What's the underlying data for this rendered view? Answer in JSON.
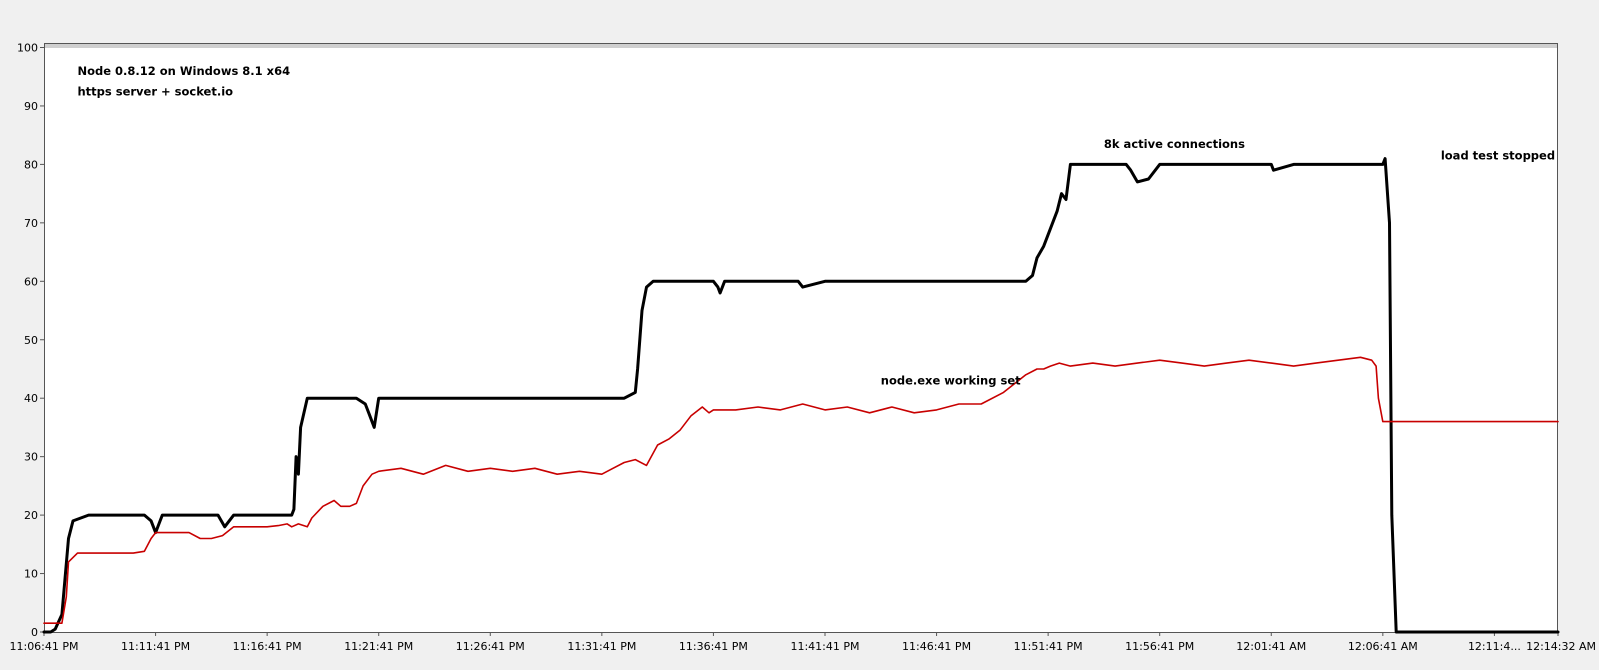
{
  "chart_data": {
    "type": "line",
    "annotations": [
      {
        "text": "Node 0.8.12 on Windows 8.1 x64",
        "x": 1.5,
        "y": 96
      },
      {
        "text": "https server + socket.io",
        "x": 1.5,
        "y": 92.5
      },
      {
        "text": "8k active connections",
        "x": 47.5,
        "y": 83.5
      },
      {
        "text": "node.exe working set",
        "x": 37.5,
        "y": 43
      },
      {
        "text": "load test stopped",
        "x": 62.6,
        "y": 81.5
      }
    ],
    "x_tick_labels": [
      "11:06:41 PM",
      "11:11:41 PM",
      "11:16:41 PM",
      "11:21:41 PM",
      "11:26:41 PM",
      "11:31:41 PM",
      "11:36:41 PM",
      "11:41:41 PM",
      "11:46:41 PM",
      "11:51:41 PM",
      "11:56:41 PM",
      "12:01:41 AM",
      "12:06:41 AM",
      "12:11:4...",
      "12:14:32 AM"
    ],
    "x_tick_positions": [
      0,
      5,
      10,
      15,
      20,
      25,
      30,
      35,
      40,
      45,
      50,
      55,
      60,
      65,
      67.85
    ],
    "xlim": [
      0,
      67.85
    ],
    "ylim": [
      0,
      100
    ],
    "y_ticks": [
      0,
      10,
      20,
      30,
      40,
      50,
      60,
      70,
      80,
      90,
      100
    ],
    "grid": false,
    "legend": "none",
    "series": [
      {
        "color": "#000000",
        "stroke": "thick",
        "x": [
          0,
          0.3,
          0.5,
          0.8,
          1.1,
          1.3,
          2,
          3,
          4,
          4.5,
          4.8,
          5,
          5.3,
          6,
          7,
          7.5,
          7.8,
          8.1,
          8.5,
          9,
          10,
          10.5,
          10.9,
          11.1,
          11.2,
          11.3,
          11.4,
          11.5,
          11.8,
          12,
          13,
          14,
          14.4,
          14.6,
          14.8,
          15,
          15.3,
          16,
          18,
          20,
          21,
          22,
          23,
          24,
          25,
          26,
          26.5,
          26.6,
          26.8,
          27,
          27.3,
          28,
          29,
          30,
          30.2,
          30.3,
          30.5,
          30.8,
          31,
          32,
          33,
          33.5,
          33.8,
          34,
          35,
          36,
          36.5,
          37,
          38,
          40,
          42,
          43,
          44,
          44.3,
          44.5,
          44.8,
          45.1,
          45.4,
          45.6,
          45.8,
          46,
          47,
          48,
          48.5,
          48.7,
          49,
          49.5,
          50,
          52,
          54,
          55,
          55.1,
          56,
          58,
          59,
          59.5,
          60,
          60.1,
          60.3,
          60.4,
          60.6,
          67.85
        ],
        "y": [
          0,
          0,
          0.5,
          3,
          16,
          19,
          20,
          20,
          20,
          20,
          19,
          17,
          20,
          20,
          20,
          20,
          20,
          18,
          20,
          20,
          20,
          20,
          20,
          20,
          21,
          30,
          27,
          35,
          40,
          40,
          40,
          40,
          39,
          37,
          35,
          40,
          40,
          40,
          40,
          40,
          40,
          40,
          40,
          40,
          40,
          40,
          41,
          45,
          55,
          59,
          60,
          60,
          60,
          60,
          59,
          58,
          60,
          60,
          60,
          60,
          60,
          60,
          60,
          59,
          60,
          60,
          60,
          60,
          60,
          60,
          60,
          60,
          60,
          61,
          64,
          66,
          69,
          72,
          75,
          74,
          80,
          80,
          80,
          80,
          79,
          77,
          77.5,
          80,
          80,
          80,
          80,
          79,
          80,
          80,
          80,
          80,
          80,
          81,
          70,
          20,
          0,
          0
        ]
      },
      {
        "color": "#c80000",
        "stroke": "thin",
        "x": [
          0,
          0.3,
          0.5,
          0.8,
          1,
          1.1,
          1.5,
          2,
          3,
          3.5,
          4,
          4.5,
          4.8,
          5,
          6,
          6.5,
          7,
          7.5,
          8,
          8.5,
          9,
          10,
          10.5,
          10.9,
          11.1,
          11.4,
          11.8,
          12,
          12.5,
          13,
          13.3,
          13.7,
          14,
          14.3,
          14.7,
          15,
          16,
          17,
          18,
          19,
          20,
          21,
          22,
          23,
          24,
          25,
          25.5,
          26,
          26.5,
          27,
          27.5,
          28,
          28.5,
          29,
          29.5,
          29.8,
          30,
          31,
          32,
          33,
          34,
          35,
          36,
          37,
          38,
          39,
          40,
          41,
          42,
          43,
          44,
          44.5,
          44.8,
          45.1,
          45.5,
          46,
          47,
          48,
          49,
          50,
          51,
          52,
          53,
          54,
          55,
          56,
          57,
          58,
          59,
          59.5,
          59.7,
          59.8,
          60,
          60.15,
          60.3,
          67.85
        ],
        "y": [
          1.5,
          1.5,
          1.5,
          1.5,
          6,
          12,
          13.5,
          13.5,
          13.5,
          13.5,
          13.5,
          13.8,
          16,
          17,
          17,
          17,
          16,
          16,
          16.5,
          18,
          18,
          18,
          18.2,
          18.5,
          18,
          18.5,
          18,
          19.5,
          21.5,
          22.5,
          21.5,
          21.5,
          22,
          25,
          27,
          27.5,
          28,
          27,
          28.5,
          27.5,
          28,
          27.5,
          28,
          27,
          27.5,
          27,
          28,
          29,
          29.5,
          28.5,
          32,
          33,
          34.5,
          37,
          38.5,
          37.5,
          38,
          38,
          38.5,
          38,
          39,
          38,
          38.5,
          37.5,
          38.5,
          37.5,
          38,
          39,
          39,
          41,
          44,
          45,
          45,
          45.5,
          46,
          45.5,
          46,
          45.5,
          46,
          46.5,
          46,
          45.5,
          46,
          46.5,
          46,
          45.5,
          46,
          46.5,
          47,
          46.5,
          45.5,
          40,
          36,
          36,
          36,
          36
        ]
      }
    ]
  }
}
